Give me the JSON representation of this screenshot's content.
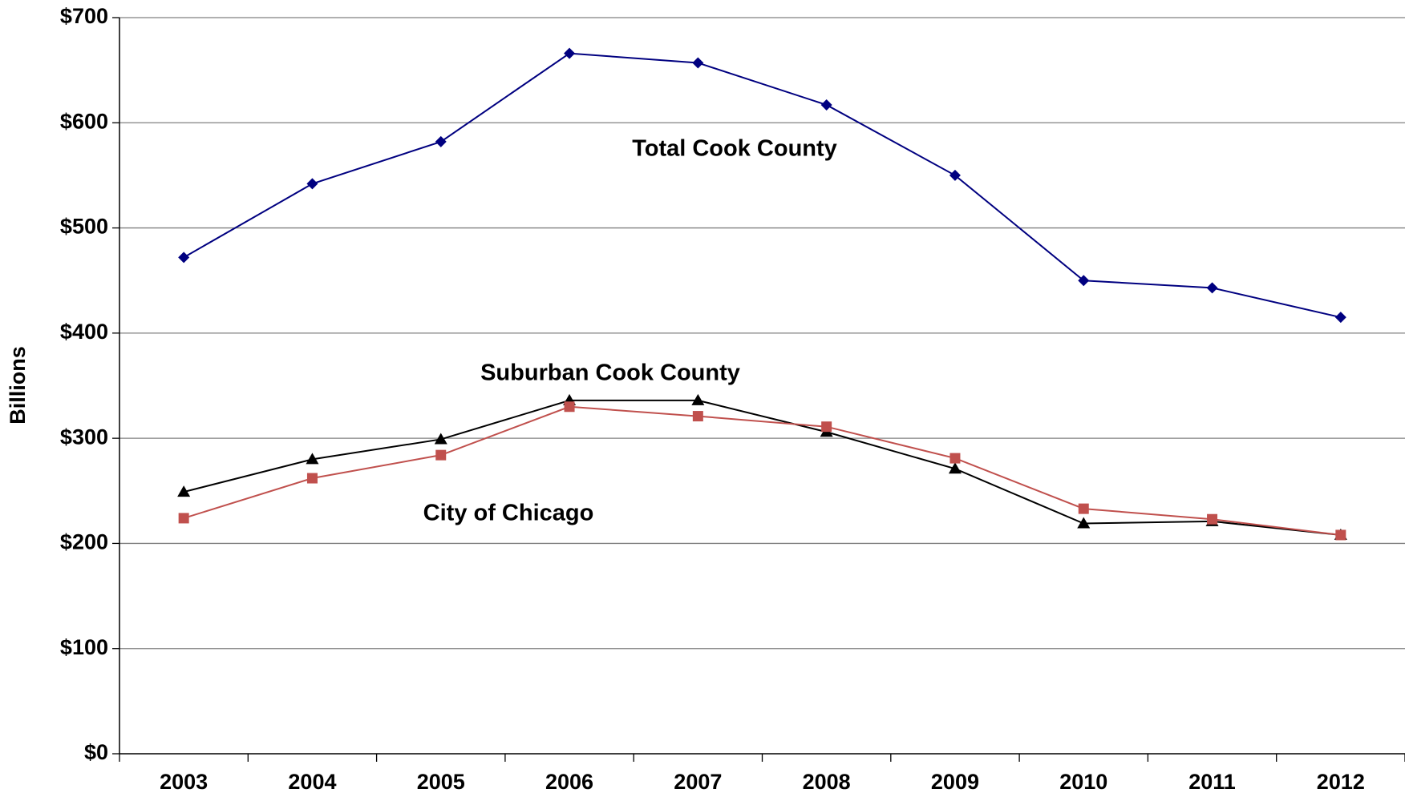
{
  "chart_data": {
    "type": "line",
    "y_label": "Billions",
    "categories": [
      "2003",
      "2004",
      "2005",
      "2006",
      "2007",
      "2008",
      "2009",
      "2010",
      "2011",
      "2012"
    ],
    "series": [
      {
        "name": "Total Cook County",
        "color": "#000080",
        "marker": "diamond",
        "values": [
          472,
          542,
          582,
          666,
          657,
          617,
          550,
          450,
          443,
          415
        ]
      },
      {
        "name": "Suburban Cook County",
        "color": "#000000",
        "marker": "triangle",
        "values": [
          249,
          280,
          299,
          336,
          336,
          306,
          271,
          219,
          221,
          208
        ]
      },
      {
        "name": "City of Chicago",
        "color": "#c0504d",
        "marker": "square",
        "values": [
          224,
          262,
          284,
          330,
          321,
          311,
          281,
          233,
          223,
          208
        ]
      }
    ],
    "ylim": [
      0,
      700
    ],
    "yticks": [
      {
        "value": 0,
        "label": "$0"
      },
      {
        "value": 100,
        "label": "$100"
      },
      {
        "value": 200,
        "label": "$200"
      },
      {
        "value": 300,
        "label": "$300"
      },
      {
        "value": 400,
        "label": "$400"
      },
      {
        "value": 500,
        "label": "$500"
      },
      {
        "value": 600,
        "label": "$600"
      },
      {
        "value": 700,
        "label": "$700"
      }
    ],
    "grid": true
  }
}
